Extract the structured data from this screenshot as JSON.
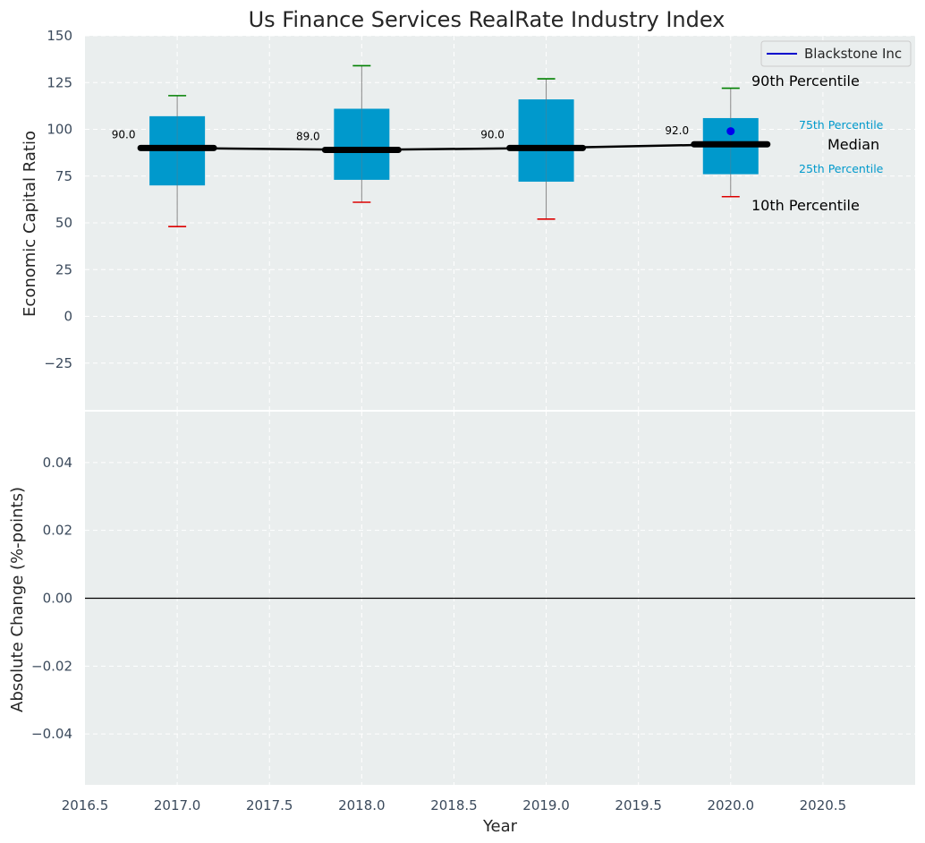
{
  "chart_data": [
    {
      "type": "box",
      "title": "Us Finance Services RealRate Industry Index",
      "ylabel": "Economic Capital Ratio",
      "xlim": [
        2016.5,
        2021.0
      ],
      "ylim": [
        -50,
        150
      ],
      "yticks": [
        -25,
        0,
        25,
        50,
        75,
        100,
        125,
        150
      ],
      "grid": true,
      "legend": {
        "position": "top-right",
        "entries": [
          {
            "label": "Blackstone Inc",
            "color": "#0000cc"
          }
        ]
      },
      "boxes": [
        {
          "x": 2017,
          "p10": 48,
          "p25": 70,
          "median": 90,
          "p75": 107,
          "p90": 118
        },
        {
          "x": 2018,
          "p10": 61,
          "p25": 73,
          "median": 89,
          "p75": 111,
          "p90": 134
        },
        {
          "x": 2019,
          "p10": 52,
          "p25": 72,
          "median": 90,
          "p75": 116,
          "p90": 127
        },
        {
          "x": 2020,
          "p10": 64,
          "p25": 76,
          "median": 92,
          "p75": 106,
          "p90": 122
        }
      ],
      "median_line": {
        "x": [
          2017,
          2018,
          2019,
          2020
        ],
        "values": [
          90,
          89,
          90,
          92
        ]
      },
      "median_labels": [
        "90.0",
        "89.0",
        "90.0",
        "92.0"
      ],
      "company_points": {
        "name": "Blackstone Inc",
        "x": [
          2020
        ],
        "values": [
          99
        ]
      },
      "annotations": {
        "p90": "90th Percentile",
        "p75": "75th Percentile",
        "median": "Median",
        "p25": "25th Percentile",
        "p10": "10th Percentile"
      },
      "colors": {
        "box": "#0099cc",
        "p90_cap": "#008000",
        "p10_cap": "#dd0000",
        "median": "#000000",
        "company": "#0000ee",
        "background": "#eaeeee"
      }
    },
    {
      "type": "line",
      "ylabel": "Absolute Change (%-points)",
      "xlabel": "Year",
      "xlim": [
        2016.5,
        2021.0
      ],
      "ylim": [
        -0.055,
        0.055
      ],
      "xticks": [
        2016.5,
        2017.0,
        2017.5,
        2018.0,
        2018.5,
        2019.0,
        2019.5,
        2020.0,
        2020.5
      ],
      "yticks": [
        -0.04,
        -0.02,
        0.0,
        0.02,
        0.04
      ],
      "x_tick_labels": [
        "2016.5",
        "2017.0",
        "2017.5",
        "2018.0",
        "2018.5",
        "2019.0",
        "2019.5",
        "2020.0",
        "2020.5"
      ],
      "y_tick_labels": [
        "−0.04",
        "−0.02",
        "0.00",
        "0.02",
        "0.04"
      ],
      "series": [],
      "reference_line": 0,
      "grid": true
    }
  ],
  "top_ytick_labels": [
    "−25",
    "0",
    "25",
    "50",
    "75",
    "100",
    "125",
    "150"
  ]
}
